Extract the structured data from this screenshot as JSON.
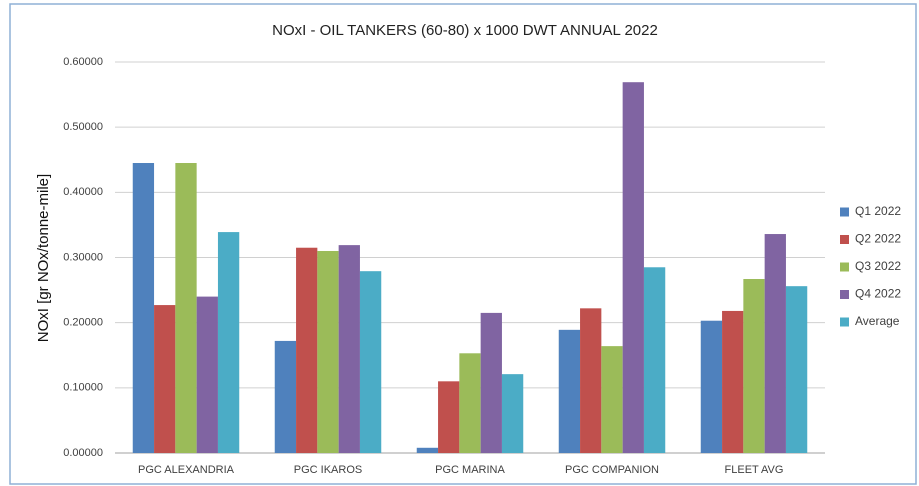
{
  "chart_data": {
    "type": "bar",
    "title": "NOxI - OIL TANKERS (60-80) x 1000 DWT ANNUAL 2022",
    "y_label": "NOxI  [gr NOx/tonne-mile]",
    "categories": [
      "PGC ALEXANDRIA",
      "PGC IKAROS",
      "PGC MARINA",
      "PGC COMPANION",
      "FLEET AVG"
    ],
    "series": [
      {
        "name": "Q1 2022",
        "color": "#4f81bd",
        "values": [
          0.445,
          0.172,
          0.008,
          0.189,
          0.203
        ]
      },
      {
        "name": "Q2 2022",
        "color": "#c0504d",
        "values": [
          0.227,
          0.315,
          0.11,
          0.222,
          0.218
        ]
      },
      {
        "name": "Q3 2022",
        "color": "#9bbb59",
        "values": [
          0.445,
          0.31,
          0.153,
          0.164,
          0.267
        ]
      },
      {
        "name": "Q4 2022",
        "color": "#8064a2",
        "values": [
          0.24,
          0.319,
          0.215,
          0.569,
          0.336
        ]
      },
      {
        "name": "Average",
        "color": "#4bacc6",
        "values": [
          0.339,
          0.279,
          0.121,
          0.285,
          0.256
        ]
      }
    ],
    "ylim": [
      0,
      0.6
    ],
    "yticks": [
      {
        "value": 0,
        "label": "0.00000"
      },
      {
        "value": 0.1,
        "label": "0.10000"
      },
      {
        "value": 0.2,
        "label": "0.20000"
      },
      {
        "value": 0.3,
        "label": "0.30000"
      },
      {
        "value": 0.4,
        "label": "0.40000"
      },
      {
        "value": 0.5,
        "label": "0.50000"
      },
      {
        "value": 0.6,
        "label": "0.60000"
      }
    ],
    "grid": true,
    "legend": "right"
  }
}
